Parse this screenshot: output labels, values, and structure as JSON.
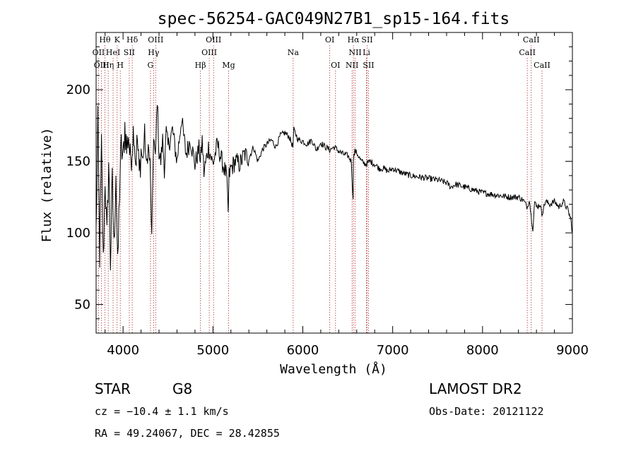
{
  "chart_data": {
    "type": "line",
    "title": "spec-56254-GAC049N27B1_sp15-164.fits",
    "xlabel": "Wavelength (Å)",
    "ylabel": "Flux (relative)",
    "xlim": [
      3700,
      9000
    ],
    "ylim": [
      30,
      240
    ],
    "xticks": [
      4000,
      5000,
      6000,
      7000,
      8000,
      9000
    ],
    "xtick_labels": [
      "4000",
      "5000",
      "6000",
      "7000",
      "8000",
      "9000"
    ],
    "yticks": [
      50,
      100,
      150,
      200
    ],
    "ytick_labels": [
      "50",
      "100",
      "150",
      "200"
    ],
    "grid": false,
    "series": [
      {
        "name": "spectrum",
        "color": "#000000",
        "x": [
          3700,
          3720,
          3740,
          3760,
          3780,
          3800,
          3820,
          3840,
          3860,
          3880,
          3900,
          3920,
          3940,
          3960,
          3980,
          4000,
          4020,
          4040,
          4060,
          4080,
          4100,
          4120,
          4140,
          4160,
          4180,
          4200,
          4220,
          4240,
          4260,
          4280,
          4300,
          4320,
          4340,
          4360,
          4380,
          4400,
          4420,
          4440,
          4460,
          4480,
          4500,
          4550,
          4600,
          4650,
          4700,
          4750,
          4800,
          4850,
          4860,
          4880,
          4900,
          4950,
          5000,
          5050,
          5100,
          5150,
          5170,
          5180,
          5200,
          5250,
          5300,
          5350,
          5400,
          5450,
          5500,
          5550,
          5600,
          5650,
          5700,
          5750,
          5800,
          5850,
          5890,
          5900,
          5950,
          6000,
          6050,
          6100,
          6150,
          6200,
          6250,
          6300,
          6350,
          6400,
          6450,
          6500,
          6540,
          6560,
          6563,
          6580,
          6600,
          6650,
          6700,
          6750,
          6800,
          6850,
          6900,
          6950,
          7000,
          7100,
          7200,
          7300,
          7400,
          7500,
          7600,
          7650,
          7700,
          7800,
          7900,
          8000,
          8100,
          8200,
          8300,
          8400,
          8450,
          8500,
          8520,
          8540,
          8560,
          8580,
          8600,
          8640,
          8660,
          8700,
          8750,
          8800,
          8850,
          8900,
          8950,
          8980,
          9000
        ],
        "y": [
          100,
          175,
          85,
          160,
          78,
          140,
          95,
          150,
          80,
          135,
          88,
          145,
          72,
          130,
          160,
          150,
          175,
          158,
          170,
          150,
          160,
          175,
          150,
          165,
          140,
          158,
          150,
          170,
          145,
          160,
          148,
          95,
          170,
          150,
          195,
          155,
          150,
          165,
          145,
          170,
          160,
          172,
          150,
          180,
          155,
          165,
          148,
          160,
          148,
          165,
          142,
          160,
          148,
          162,
          150,
          140,
          115,
          140,
          145,
          150,
          148,
          155,
          152,
          160,
          150,
          158,
          162,
          165,
          160,
          168,
          170,
          167,
          160,
          172,
          165,
          164,
          162,
          165,
          158,
          163,
          160,
          158,
          160,
          157,
          155,
          154,
          150,
          122,
          152,
          157,
          156,
          150,
          148,
          150,
          148,
          145,
          145,
          143,
          145,
          142,
          140,
          139,
          138,
          137,
          135,
          132,
          134,
          132,
          130,
          128,
          127,
          126,
          125,
          125,
          123,
          118,
          124,
          112,
          103,
          122,
          118,
          120,
          113,
          122,
          120,
          122,
          118,
          122,
          116,
          110,
          100
        ]
      }
    ],
    "line_markers": [
      {
        "label": "Hθ",
        "wavelength": 3798,
        "row": 1
      },
      {
        "label": "OII",
        "wavelength": 3727,
        "row": 2
      },
      {
        "label": "HeI",
        "wavelength": 3889,
        "row": 2
      },
      {
        "label": "OIII",
        "wavelength": 3760,
        "row": 3
      },
      {
        "label": "Hη",
        "wavelength": 3835,
        "row": 3
      },
      {
        "label": "K",
        "wavelength": 3934,
        "row": 1
      },
      {
        "label": "SII",
        "wavelength": 4069,
        "row": 2
      },
      {
        "label": "H",
        "wavelength": 3969,
        "row": 3
      },
      {
        "label": "Hδ",
        "wavelength": 4102,
        "row": 1
      },
      {
        "label": "OIII",
        "wavelength": 4363,
        "row": 1
      },
      {
        "label": "Hγ",
        "wavelength": 4340,
        "row": 2
      },
      {
        "label": "G",
        "wavelength": 4305,
        "row": 3
      },
      {
        "label": "Hβ",
        "wavelength": 4861,
        "row": 3
      },
      {
        "label": "OIII",
        "wavelength": 5007,
        "row": 1
      },
      {
        "label": "OIII",
        "wavelength": 4959,
        "row": 2
      },
      {
        "label": "Mg",
        "wavelength": 5175,
        "row": 3
      },
      {
        "label": "Na",
        "wavelength": 5893,
        "row": 2
      },
      {
        "label": "OI",
        "wavelength": 6300,
        "row": 1
      },
      {
        "label": "OI",
        "wavelength": 6364,
        "row": 3
      },
      {
        "label": "Hα",
        "wavelength": 6563,
        "row": 1
      },
      {
        "label": "SII",
        "wavelength": 6716,
        "row": 1
      },
      {
        "label": "NII",
        "wavelength": 6583,
        "row": 2
      },
      {
        "label": "Li",
        "wavelength": 6708,
        "row": 2
      },
      {
        "label": "NII",
        "wavelength": 6548,
        "row": 3
      },
      {
        "label": "SII",
        "wavelength": 6731,
        "row": 3
      },
      {
        "label": "CaII",
        "wavelength": 8542,
        "row": 1
      },
      {
        "label": "CaII",
        "wavelength": 8498,
        "row": 2
      },
      {
        "label": "CaII",
        "wavelength": 8662,
        "row": 3
      }
    ],
    "marker_color": "#b03030"
  },
  "info": {
    "object_class": "STAR",
    "subclass": "G8",
    "survey": "LAMOST DR2",
    "cz": "cz = −10.4 ± 1.1 km/s",
    "obs_date": "Obs-Date: 20121122",
    "coords": "RA =  49.24067, DEC =  28.42855"
  }
}
